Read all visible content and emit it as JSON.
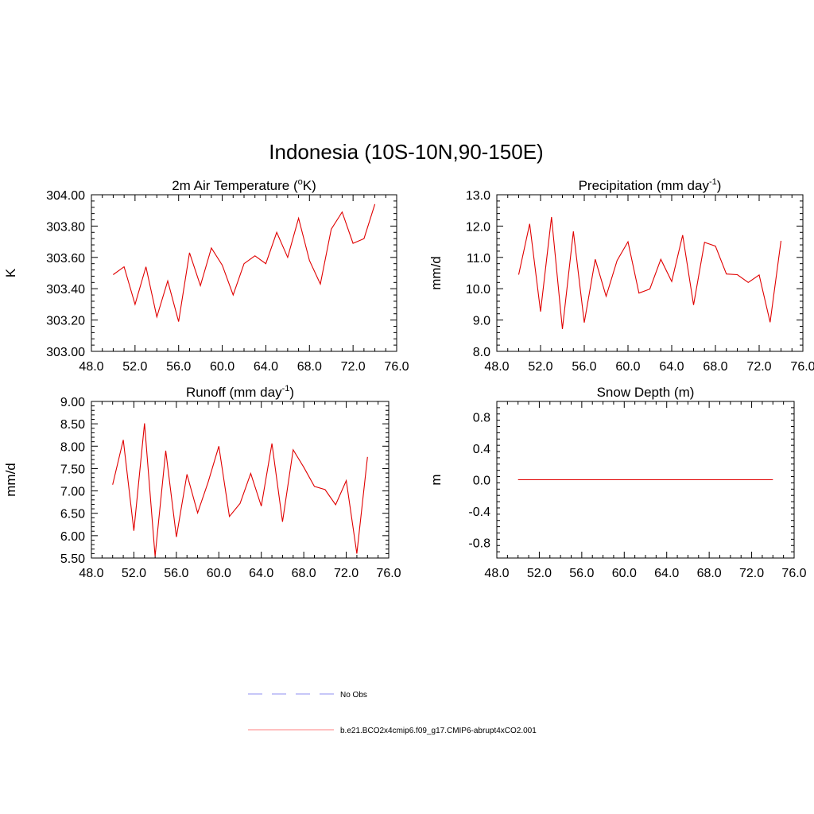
{
  "figure": {
    "title": "Indonesia (10S-10N,90-150E)"
  },
  "legend": {
    "entries": [
      {
        "label": "No Obs",
        "color": "#8f8ff0",
        "dash": "dashed"
      },
      {
        "label": "b.e21.BCO2x4cmip6.f09_g17.CMIP6-abrupt4xCO2.001",
        "color": "#ff8080",
        "dash": "solid"
      }
    ]
  },
  "chart_data": [
    {
      "type": "line",
      "title": "2m Air Temperature (",
      "title_unit_sup": "o",
      "title_unit": "K)",
      "ylabel": "K",
      "xlim": [
        48,
        76
      ],
      "ylim": [
        303.0,
        304.0
      ],
      "x_ticks": [
        48,
        52,
        56,
        60,
        64,
        68,
        72,
        76
      ],
      "x_tick_labels": [
        "48.0",
        "52.0",
        "56.0",
        "60.0",
        "64.0",
        "68.0",
        "72.0",
        "76.0"
      ],
      "y_ticks": [
        303.0,
        303.2,
        303.4,
        303.6,
        303.8,
        304.0
      ],
      "y_tick_labels": [
        "303.00",
        "303.20",
        "303.40",
        "303.60",
        "303.80",
        "304.00"
      ],
      "series": [
        {
          "color": "#e00000",
          "x": [
            50,
            51,
            52,
            53,
            54,
            55,
            56,
            57,
            58,
            59,
            60,
            61,
            62,
            63,
            64,
            65,
            66,
            67,
            68,
            69,
            70,
            71,
            72,
            73,
            74
          ],
          "y": [
            303.49,
            303.54,
            303.3,
            303.54,
            303.22,
            303.45,
            303.19,
            303.63,
            303.42,
            303.66,
            303.55,
            303.36,
            303.56,
            303.61,
            303.56,
            303.76,
            303.6,
            303.85,
            303.58,
            303.43,
            303.78,
            303.89,
            303.69,
            303.72,
            303.94
          ]
        }
      ]
    },
    {
      "type": "line",
      "title": "Precipitation (mm day",
      "title_unit_sup": "-1",
      "title_unit": ")",
      "ylabel": "mm/d",
      "xlim": [
        48,
        76
      ],
      "ylim": [
        8.0,
        13.0
      ],
      "x_ticks": [
        48,
        52,
        56,
        60,
        64,
        68,
        72,
        76
      ],
      "x_tick_labels": [
        "48.0",
        "52.0",
        "56.0",
        "60.0",
        "64.0",
        "68.0",
        "72.0",
        "76.0"
      ],
      "y_ticks": [
        8,
        9,
        10,
        11,
        12,
        13
      ],
      "y_tick_labels": [
        "8.0",
        "9.0",
        "10.0",
        "11.0",
        "12.0",
        "13.0"
      ],
      "series": [
        {
          "color": "#e00000",
          "x": [
            50,
            51,
            52,
            53,
            54,
            55,
            56,
            57,
            58,
            59,
            60,
            61,
            62,
            63,
            64,
            65,
            66,
            67,
            68,
            69,
            70,
            71,
            72,
            73,
            74
          ],
          "y": [
            10.45,
            12.07,
            9.27,
            12.29,
            8.71,
            11.83,
            8.92,
            10.94,
            9.76,
            10.9,
            11.5,
            9.86,
            9.99,
            10.94,
            10.23,
            11.71,
            9.48,
            11.48,
            11.36,
            10.47,
            10.45,
            10.2,
            10.44,
            8.93,
            11.53
          ]
        }
      ]
    },
    {
      "type": "line",
      "title": "Runoff (mm day",
      "title_unit_sup": "-1",
      "title_unit": ")",
      "ylabel": "mm/d",
      "xlim": [
        48,
        76
      ],
      "ylim": [
        5.5,
        9.0
      ],
      "x_ticks": [
        48,
        52,
        56,
        60,
        64,
        68,
        72,
        76
      ],
      "x_tick_labels": [
        "48.0",
        "52.0",
        "56.0",
        "60.0",
        "64.0",
        "68.0",
        "72.0",
        "76.0"
      ],
      "y_ticks": [
        5.5,
        6.0,
        6.5,
        7.0,
        7.5,
        8.0,
        8.5,
        9.0
      ],
      "y_tick_labels": [
        "5.50",
        "6.00",
        "6.50",
        "7.00",
        "7.50",
        "8.00",
        "8.50",
        "9.00"
      ],
      "series": [
        {
          "color": "#e00000",
          "x": [
            50,
            51,
            52,
            53,
            54,
            55,
            56,
            57,
            58,
            59,
            60,
            61,
            62,
            63,
            64,
            65,
            66,
            67,
            68,
            69,
            70,
            71,
            72,
            73,
            74
          ],
          "y": [
            7.14,
            8.14,
            6.11,
            8.51,
            5.54,
            7.9,
            5.97,
            7.37,
            6.51,
            7.2,
            8.0,
            6.43,
            6.72,
            7.39,
            6.66,
            8.06,
            6.31,
            7.92,
            7.53,
            7.1,
            7.03,
            6.69,
            7.23,
            5.6,
            7.76
          ]
        }
      ]
    },
    {
      "type": "line",
      "title": "Snow Depth (m)",
      "title_unit_sup": "",
      "title_unit": "",
      "ylabel": "m",
      "xlim": [
        48,
        76
      ],
      "ylim": [
        -1.0,
        1.0
      ],
      "x_ticks": [
        48,
        52,
        56,
        60,
        64,
        68,
        72,
        76
      ],
      "x_tick_labels": [
        "48.0",
        "52.0",
        "56.0",
        "60.0",
        "64.0",
        "68.0",
        "72.0",
        "76.0"
      ],
      "y_ticks": [
        -0.8,
        -0.4,
        0.0,
        0.4,
        0.8
      ],
      "y_tick_labels": [
        "-0.8",
        "-0.4",
        "0.0",
        "0.4",
        "0.8"
      ],
      "series": [
        {
          "color": "#e00000",
          "x": [
            50,
            74
          ],
          "y": [
            0.0,
            0.0
          ]
        }
      ]
    }
  ]
}
